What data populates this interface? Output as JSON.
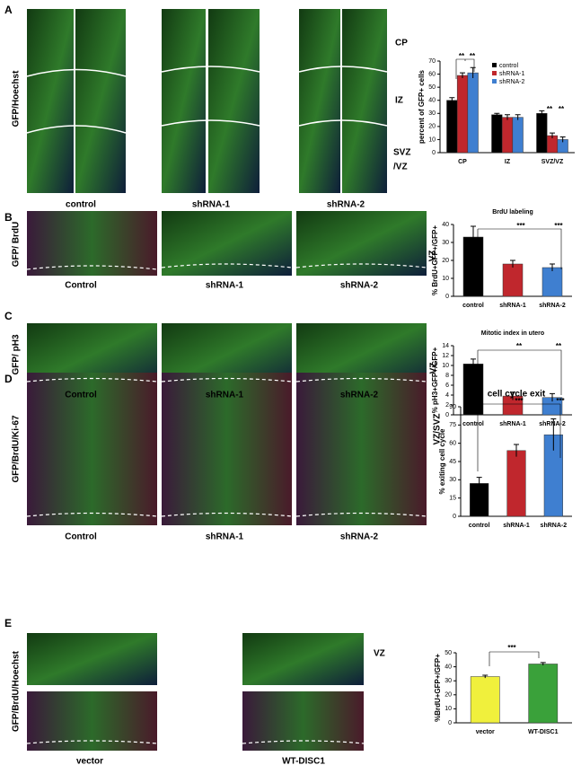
{
  "panels": [
    {
      "letter": "A",
      "stain": "GFP/Hoechst",
      "conditions": [
        "control",
        "shRNA-1",
        "shRNA-2"
      ],
      "regions": [
        "CP",
        "IZ",
        "SVZ",
        "/VZ"
      ]
    },
    {
      "letter": "B",
      "stain": "GFP/ BrdU",
      "conditions": [
        "Control",
        "shRNA-1",
        "shRNA-2"
      ],
      "zone": "VZ"
    },
    {
      "letter": "C",
      "stain": "GFP/ pH3",
      "conditions": [
        "Control",
        "shRNA-1",
        "shRNA-2"
      ],
      "zone": "VZ"
    },
    {
      "letter": "D",
      "stain": "GFP/BrdU/Ki-67",
      "conditions": [
        "Control",
        "shRNA-1",
        "shRNA-2"
      ],
      "zone": "VZ/SVZ"
    },
    {
      "letter": "E",
      "stain": "GFP/BrdU/Hoechst",
      "conditions": [
        "vector",
        "WT-DISC1"
      ],
      "zone": "VZ"
    }
  ],
  "chart_data": [
    {
      "type": "bar",
      "ylabel": "percent of GFP+ cells",
      "categories": [
        "CP",
        "IZ",
        "SVZ/VZ"
      ],
      "series": [
        {
          "name": "control",
          "color": "#000000",
          "values": [
            40,
            29,
            30
          ],
          "errors": [
            2,
            1,
            2
          ]
        },
        {
          "name": "shRNA-1",
          "color": "#c0272d",
          "values": [
            59,
            27,
            13
          ],
          "errors": [
            2,
            2,
            2
          ]
        },
        {
          "name": "shRNA-2",
          "color": "#3f7fd0",
          "values": [
            61,
            27,
            10
          ],
          "errors": [
            4,
            2,
            2
          ]
        }
      ],
      "ylim": [
        0,
        70
      ],
      "yticks": [
        0,
        10,
        20,
        30,
        40,
        50,
        60,
        70
      ],
      "annotations": [
        "**",
        "**",
        "**",
        "**"
      ]
    },
    {
      "type": "bar",
      "title": "BrdU labeling",
      "ylabel": "% BrdU+GFP+/GFP+",
      "categories": [
        "control",
        "shRNA-1",
        "shRNA-2"
      ],
      "values": [
        33,
        18,
        16
      ],
      "errors": [
        6,
        2,
        2
      ],
      "colors": [
        "#000000",
        "#c0272d",
        "#3f7fd0"
      ],
      "ylim": [
        0,
        40
      ],
      "yticks": [
        0,
        10,
        20,
        30,
        40
      ],
      "annotations": [
        "***",
        "***"
      ]
    },
    {
      "type": "bar",
      "title": "Mitotic index in utero",
      "ylabel": "% pH3+GFP+/GFP+",
      "categories": [
        "control",
        "shRNA-1",
        "shRNA-2"
      ],
      "values": [
        10.3,
        3.8,
        3.5
      ],
      "errors": [
        1,
        0.8,
        0.8
      ],
      "colors": [
        "#000000",
        "#c0272d",
        "#3f7fd0"
      ],
      "ylim": [
        0,
        14
      ],
      "yticks": [
        0,
        2,
        4,
        6,
        8,
        10,
        12,
        14
      ],
      "annotations": [
        "**",
        "**"
      ]
    },
    {
      "type": "bar",
      "title": "cell cycle exit",
      "ylabel": "% exiting cell cycle",
      "categories": [
        "control",
        "shRNA-1",
        "shRNA-2"
      ],
      "values": [
        27,
        54,
        67
      ],
      "errors": [
        5,
        5,
        13
      ],
      "colors": [
        "#000000",
        "#c0272d",
        "#3f7fd0"
      ],
      "ylim": [
        0,
        90
      ],
      "yticks": [
        0,
        15,
        30,
        45,
        60,
        75,
        90
      ],
      "annotations": [
        "***",
        "***"
      ]
    },
    {
      "type": "bar",
      "ylabel": "%BrdU+GFP+/GFP+",
      "categories": [
        "vector",
        "WT-DISC1"
      ],
      "values": [
        33,
        42
      ],
      "errors": [
        1,
        1
      ],
      "colors": [
        "#f0f03c",
        "#3aa13a"
      ],
      "ylim": [
        0,
        50
      ],
      "yticks": [
        0,
        10,
        20,
        30,
        40,
        50
      ],
      "annotations": [
        "***"
      ]
    }
  ]
}
